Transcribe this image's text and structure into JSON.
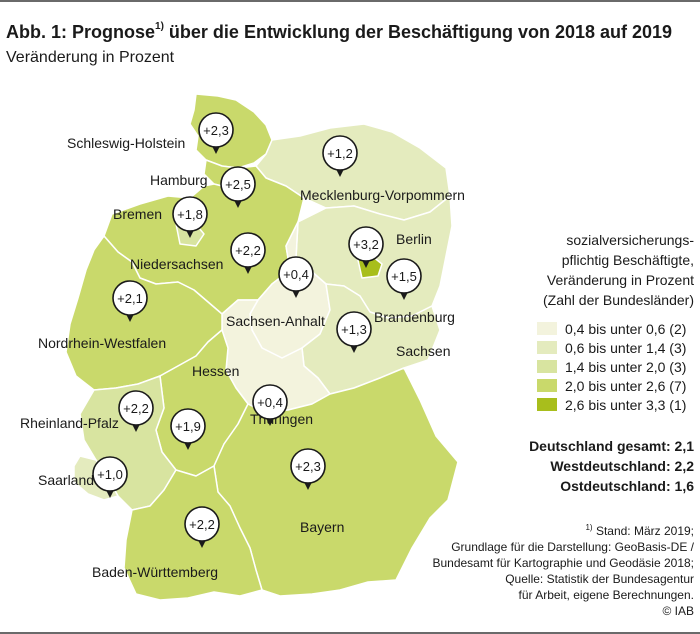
{
  "header": {
    "title_prefix": "Abb. 1: Prognose",
    "title_footnote_mark": "1)",
    "title_suffix": " über die Entwicklung der Beschäftigung von 2018 auf 2019",
    "subtitle": "Veränderung in Prozent"
  },
  "colors": {
    "class_0_4": "#f3f3dd",
    "class_0_6": "#e4ebbe",
    "class_1_4": "#d8e4a0",
    "class_2_0": "#c9d96b",
    "class_2_6": "#a8be1c",
    "border": "#ffffff"
  },
  "states": [
    {
      "name": "Schleswig-Holstein",
      "value": "+2,3"
    },
    {
      "name": "Hamburg",
      "value": "+2,5"
    },
    {
      "name": "Mecklenburg-Vorpommern",
      "value": "+1,2"
    },
    {
      "name": "Bremen",
      "value": "+1,8"
    },
    {
      "name": "Niedersachsen",
      "value": "+2,2"
    },
    {
      "name": "Berlin",
      "value": "+3,2"
    },
    {
      "name": "Sachsen-Anhalt",
      "value": "+0,4"
    },
    {
      "name": "Brandenburg",
      "value": "+1,5"
    },
    {
      "name": "Nordrhein-Westfalen",
      "value": "+2,1"
    },
    {
      "name": "Sachsen",
      "value": "+1,3"
    },
    {
      "name": "Hessen",
      "value": "+2,2"
    },
    {
      "name": "Thüringen",
      "value": "+0,4"
    },
    {
      "name": "Rheinland-Pfalz",
      "value": "+1,9"
    },
    {
      "name": "Saarland",
      "value": "+1,0"
    },
    {
      "name": "Bayern",
      "value": "+2,3"
    },
    {
      "name": "Baden-Württemberg",
      "value": "+2,2"
    }
  ],
  "legend": {
    "heading": [
      "sozialversicherungs-",
      "pflichtig Beschäftigte,",
      "Veränderung in Prozent",
      "(Zahl der Bundesländer)"
    ],
    "items": [
      {
        "label": "0,4 bis unter 0,6 (2)",
        "color": "#f3f3dd"
      },
      {
        "label": "0,6 bis unter 1,4 (3)",
        "color": "#e4ebbe"
      },
      {
        "label": "1,4 bis unter 2,0 (3)",
        "color": "#d8e4a0"
      },
      {
        "label": "2,0 bis unter 2,6 (7)",
        "color": "#c9d96b"
      },
      {
        "label": "2,6 bis unter 3,3 (1)",
        "color": "#a8be1c"
      }
    ]
  },
  "totals": {
    "gesamt": "Deutschland gesamt: 2,1",
    "west": "Westdeutschland: 2,2",
    "ost": "Ostdeutschland: 1,6"
  },
  "source": {
    "footnote_mark": "1)",
    "line1": " Stand: März 2019;",
    "line2": "Grundlage für die Darstellung: GeoBasis-DE /",
    "line3": "Bundesamt für Kartographie und Geodäsie 2018;",
    "line4": "Quelle: Statistik der Bundesagentur",
    "line5": "für Arbeit, eigene Berechnungen.",
    "line6": "© IAB"
  }
}
